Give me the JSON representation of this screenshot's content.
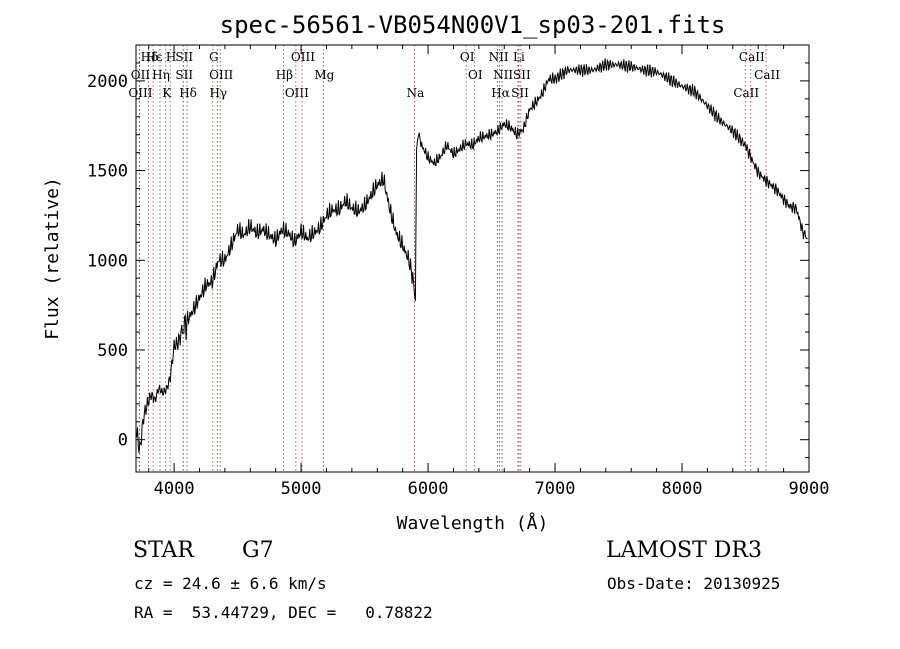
{
  "chart_data": {
    "type": "line",
    "title": "spec-56561-VB054N00V1_sp03-201.fits",
    "xlabel": "Wavelength (Å)",
    "ylabel": "Flux (relative)",
    "xlim": [
      3700,
      9000
    ],
    "ylim": [
      -180,
      2200
    ],
    "xticks": [
      4000,
      5000,
      6000,
      7000,
      8000,
      9000
    ],
    "yticks": [
      0,
      500,
      1000,
      1500,
      2000
    ],
    "series": [
      {
        "name": "flux",
        "x": [
          3700,
          3730,
          3760,
          3790,
          3820,
          3850,
          3880,
          3910,
          3940,
          3970,
          4000,
          4030,
          4060,
          4100,
          4150,
          4200,
          4250,
          4300,
          4350,
          4400,
          4450,
          4500,
          4550,
          4600,
          4650,
          4700,
          4750,
          4800,
          4850,
          4900,
          4950,
          5000,
          5050,
          5100,
          5150,
          5200,
          5250,
          5300,
          5350,
          5400,
          5450,
          5500,
          5550,
          5600,
          5650,
          5700,
          5750,
          5800,
          5850,
          5880,
          5900,
          5910,
          5930,
          5950,
          6000,
          6050,
          6100,
          6150,
          6200,
          6250,
          6300,
          6350,
          6400,
          6450,
          6500,
          6550,
          6600,
          6650,
          6700,
          6750,
          6800,
          6850,
          6900,
          6950,
          7000,
          7100,
          7200,
          7300,
          7400,
          7500,
          7600,
          7700,
          7800,
          7900,
          8000,
          8100,
          8200,
          8300,
          8400,
          8500,
          8550,
          8600,
          8650,
          8700,
          8750,
          8800,
          8850,
          8900,
          8950,
          8990
        ],
        "y": [
          60,
          -60,
          130,
          200,
          250,
          220,
          290,
          260,
          280,
          350,
          520,
          540,
          600,
          660,
          720,
          790,
          860,
          880,
          1000,
          1000,
          1080,
          1170,
          1140,
          1190,
          1150,
          1170,
          1140,
          1110,
          1170,
          1150,
          1100,
          1160,
          1120,
          1150,
          1180,
          1250,
          1280,
          1280,
          1330,
          1290,
          1270,
          1300,
          1360,
          1420,
          1450,
          1280,
          1150,
          1080,
          1000,
          900,
          780,
          1650,
          1700,
          1640,
          1570,
          1540,
          1580,
          1640,
          1590,
          1620,
          1650,
          1640,
          1680,
          1690,
          1700,
          1720,
          1760,
          1740,
          1700,
          1730,
          1840,
          1880,
          1930,
          2010,
          2010,
          2060,
          2060,
          2060,
          2090,
          2090,
          2080,
          2060,
          2050,
          2010,
          1970,
          1940,
          1860,
          1780,
          1720,
          1640,
          1560,
          1490,
          1450,
          1420,
          1390,
          1340,
          1300,
          1290,
          1160,
          1120
        ]
      }
    ],
    "line_names": [
      "Hδ",
      "OII",
      "OIII",
      "Hε",
      "Hη",
      "K",
      "H",
      "SII",
      "Hδ",
      "SII",
      "OIII",
      "Hγ",
      "G",
      "Hβ",
      "OIII",
      "OIII",
      "Mg",
      "Na",
      "OI",
      "OI",
      "Hα",
      "NII",
      "NII",
      "SII",
      "Li",
      "SII",
      "CaII",
      "CaII",
      "CaII"
    ],
    "line_wavelengths": [
      3798,
      3727,
      3727,
      3835,
      3889,
      3934,
      3969,
      4072,
      4102,
      4072,
      4363,
      4340,
      4305,
      4861,
      4959,
      5007,
      5175,
      5893,
      6300,
      6364,
      6563,
      6548,
      6583,
      6716,
      6708,
      6731,
      8498,
      8542,
      8662
    ]
  },
  "info": {
    "class_label": "STAR",
    "subclass": "G7",
    "redshift_text": "cz = 24.6 ± 6.6 km/s",
    "coords_text": "RA =  53.44729, DEC =   0.78822",
    "survey": "LAMOST DR3",
    "obs_date": "Obs-Date: 20130925"
  }
}
